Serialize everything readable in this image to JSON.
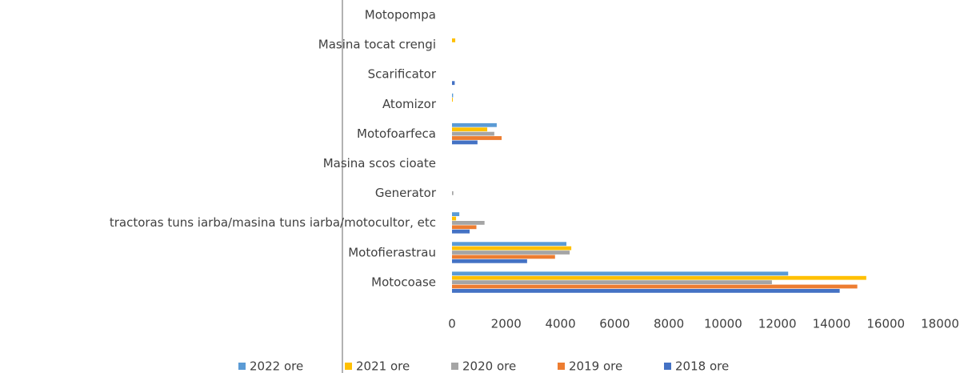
{
  "chart_data": {
    "type": "hbar",
    "categories": [
      "Motopompa",
      "Masina tocat crengi",
      "Scarificator",
      "Atomizor",
      "Motofoarfeca",
      "Masina scos cioate",
      "Generator",
      "tractoras tuns iarba/masina tuns iarba/motocultor, etc",
      "Motofierastrau",
      "Motocoase"
    ],
    "series": [
      {
        "name": "2022 ore",
        "color": "#5b9bd5",
        "values": [
          0,
          0,
          0,
          40,
          1650,
          0,
          0,
          270,
          4220,
          12400
        ]
      },
      {
        "name": "2021 ore",
        "color": "#ffc000",
        "values": [
          0,
          120,
          0,
          30,
          1300,
          0,
          0,
          150,
          4400,
          15280
        ]
      },
      {
        "name": "2020 ore",
        "color": "#a5a5a5",
        "values": [
          0,
          0,
          0,
          0,
          1560,
          0,
          50,
          1200,
          4340,
          11800
        ]
      },
      {
        "name": "2019 ore",
        "color": "#ed7d31",
        "values": [
          0,
          0,
          0,
          0,
          1830,
          0,
          0,
          900,
          3800,
          14950
        ]
      },
      {
        "name": "2018 ore",
        "color": "#4472c4",
        "values": [
          0,
          0,
          100,
          0,
          940,
          0,
          0,
          650,
          2770,
          14300
        ]
      }
    ],
    "xlim": [
      0,
      18000
    ],
    "xticks": [
      0,
      2000,
      4000,
      6000,
      8000,
      10000,
      12000,
      14000,
      16000,
      18000
    ],
    "grid": false
  }
}
